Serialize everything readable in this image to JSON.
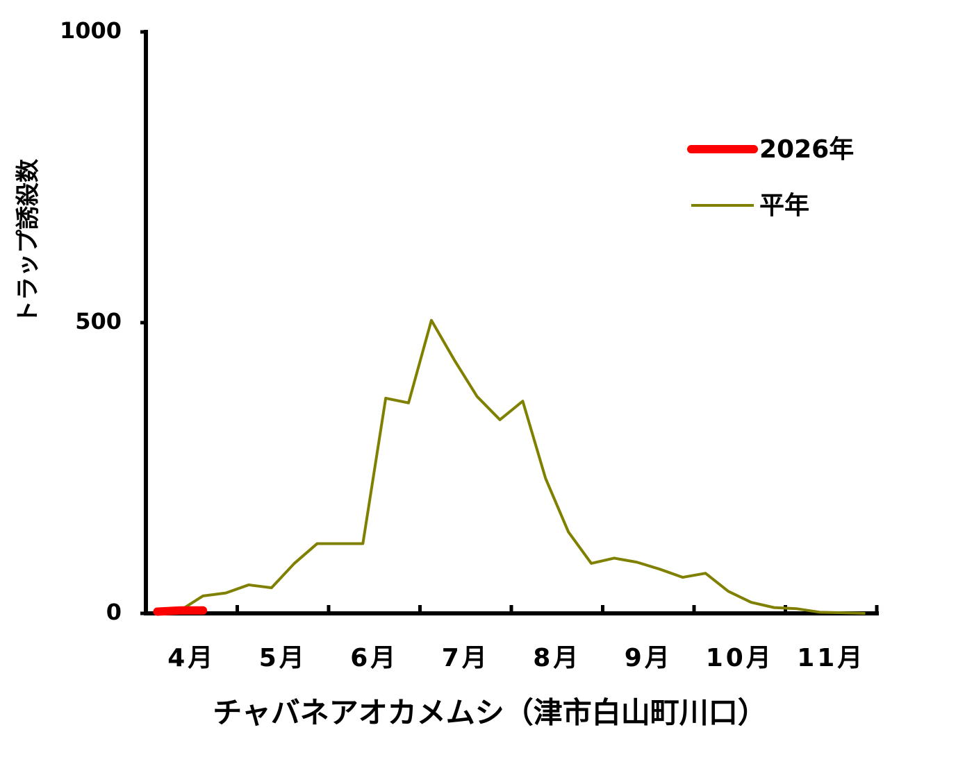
{
  "chart_data": {
    "type": "line",
    "title": "チャバネアオカメムシ（津市白山町川口）",
    "y_label": "トラップ誘殺数",
    "categories": [
      null,
      "4月",
      null,
      null,
      null,
      "5月",
      null,
      null,
      null,
      "6月",
      null,
      null,
      null,
      "7月",
      null,
      null,
      null,
      "8月",
      null,
      null,
      null,
      "9月",
      null,
      null,
      null,
      "10月",
      null,
      null,
      null,
      "11月",
      null,
      null
    ],
    "series": [
      {
        "name": "2026年",
        "color": "#ff0000",
        "values": [
          3,
          5,
          5,
          null,
          null,
          null,
          null,
          null,
          null,
          null,
          null,
          null,
          null,
          null,
          null,
          null,
          null,
          null,
          null,
          null,
          null,
          null,
          null,
          null,
          null,
          null,
          null,
          null,
          null,
          null,
          null,
          null
        ]
      },
      {
        "name": "平年",
        "color": "#808000",
        "values": [
          2,
          5,
          30,
          35,
          49,
          44,
          86,
          120,
          120,
          120,
          370,
          362,
          504,
          436,
          373,
          333,
          365,
          232,
          140,
          86,
          95,
          88,
          76,
          62,
          69,
          38,
          19,
          10,
          8,
          2,
          1,
          0
        ]
      }
    ],
    "ylim": [
      0,
      1000
    ],
    "yticks": [
      0,
      500,
      1000
    ],
    "grid": false,
    "legend": "upper right"
  }
}
